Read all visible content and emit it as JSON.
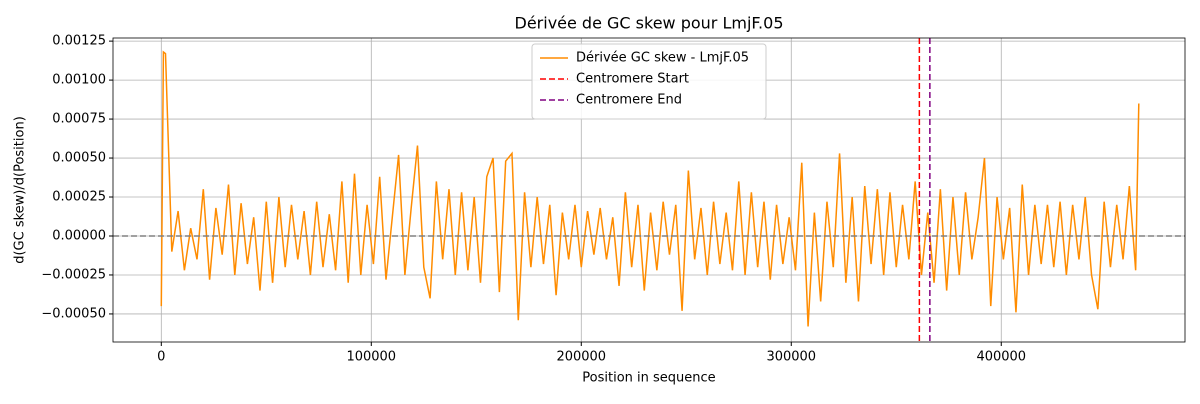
{
  "chart_data": {
    "type": "line",
    "title": "Dérivée de GC skew pour LmjF.05",
    "xlabel": "Position in sequence",
    "ylabel": "d(GC skew)/d(Position)",
    "xlim": [
      -23000,
      487500
    ],
    "ylim": [
      -0.00068,
      0.00127
    ],
    "xticks": [
      0,
      100000,
      200000,
      300000,
      400000
    ],
    "yticks": [
      {
        "value": -0.0005,
        "label": "−0.00050"
      },
      {
        "value": -0.00025,
        "label": "−0.00025"
      },
      {
        "value": 0,
        "label": "0.00000"
      },
      {
        "value": 0.00025,
        "label": "0.00025"
      },
      {
        "value": 0.0005,
        "label": "0.00050"
      },
      {
        "value": 0.00075,
        "label": "0.00075"
      },
      {
        "value": 0.001,
        "label": "0.00100"
      },
      {
        "value": 0.00125,
        "label": "0.00125"
      }
    ],
    "grid": true,
    "legend": "upper center",
    "x": [
      0,
      1000,
      2000,
      5000,
      8000,
      11000,
      14000,
      17000,
      20000,
      23000,
      26000,
      29000,
      32000,
      35000,
      38000,
      41000,
      44000,
      47000,
      50000,
      53000,
      56000,
      59000,
      62000,
      65000,
      68000,
      71000,
      74000,
      77000,
      80000,
      83000,
      86000,
      89000,
      92000,
      95000,
      98000,
      101000,
      104000,
      107000,
      110000,
      113000,
      116000,
      119000,
      122000,
      125000,
      128000,
      131000,
      134000,
      137000,
      140000,
      143000,
      146000,
      149000,
      152000,
      155000,
      158000,
      161000,
      164000,
      167000,
      170000,
      173000,
      176000,
      179000,
      182000,
      185000,
      188000,
      191000,
      194000,
      197000,
      200000,
      203000,
      206000,
      209000,
      212000,
      215000,
      218000,
      221000,
      224000,
      227000,
      230000,
      233000,
      236000,
      239000,
      242000,
      245000,
      248000,
      251000,
      254000,
      257000,
      260000,
      263000,
      266000,
      269000,
      272000,
      275000,
      278000,
      281000,
      284000,
      287000,
      290000,
      293000,
      296000,
      299000,
      302000,
      305000,
      308000,
      311000,
      314000,
      317000,
      320000,
      323000,
      326000,
      329000,
      332000,
      335000,
      338000,
      341000,
      344000,
      347000,
      350000,
      353000,
      356000,
      359000,
      362000,
      365000,
      368000,
      371000,
      374000,
      377000,
      380000,
      383000,
      386000,
      389000,
      392000,
      395000,
      398000,
      401000,
      404000,
      407000,
      410000,
      413000,
      416000,
      419000,
      422000,
      425000,
      428000,
      431000,
      434000,
      437000,
      440000,
      443000,
      446000,
      449000,
      452000,
      455000,
      458000,
      461000,
      464000,
      465500
    ],
    "series": [
      {
        "name": "Dérivée GC skew - LmjF.05",
        "color": "#ff8c00",
        "values": [
          -0.00045,
          0.00118,
          0.00117,
          -0.0001,
          0.00016,
          -0.00022,
          5e-05,
          -0.00015,
          0.0003,
          -0.00028,
          0.00018,
          -0.00012,
          0.00033,
          -0.00025,
          0.00021,
          -0.00018,
          0.00012,
          -0.00035,
          0.00022,
          -0.0003,
          0.00025,
          -0.0002,
          0.0002,
          -0.00015,
          0.00016,
          -0.00025,
          0.00022,
          -0.0002,
          0.00014,
          -0.00022,
          0.00035,
          -0.0003,
          0.0004,
          -0.00025,
          0.0002,
          -0.00018,
          0.00038,
          -0.00028,
          0.00012,
          0.00052,
          -0.00025,
          0.00018,
          0.00058,
          -0.0002,
          -0.0004,
          0.00035,
          -0.00015,
          0.0003,
          -0.00025,
          0.00028,
          -0.00022,
          0.00025,
          -0.0003,
          0.00038,
          0.0005,
          -0.00036,
          0.00048,
          0.00053,
          -0.00054,
          0.00028,
          -0.0002,
          0.00025,
          -0.00018,
          0.0002,
          -0.00038,
          0.00015,
          -0.00015,
          0.0002,
          -0.0002,
          0.00016,
          -0.00012,
          0.00018,
          -0.00015,
          0.00012,
          -0.00032,
          0.00028,
          -0.0002,
          0.0002,
          -0.00035,
          0.00015,
          -0.00022,
          0.00022,
          -0.00012,
          0.0002,
          -0.00048,
          0.00042,
          -0.00015,
          0.00018,
          -0.00025,
          0.00022,
          -0.00018,
          0.00015,
          -0.00022,
          0.00035,
          -0.00025,
          0.00028,
          -0.0002,
          0.00022,
          -0.00028,
          0.0002,
          -0.00018,
          0.00012,
          -0.00022,
          0.00047,
          -0.00058,
          0.00015,
          -0.00042,
          0.00022,
          -0.0002,
          0.00053,
          -0.0003,
          0.00025,
          -0.00042,
          0.00032,
          -0.00018,
          0.0003,
          -0.00025,
          0.00028,
          -0.0002,
          0.0002,
          -0.00015,
          0.00035,
          -0.00025,
          0.00015,
          -0.0003,
          0.0003,
          -0.00035,
          0.00025,
          -0.00025,
          0.00028,
          -0.00015,
          0.00012,
          0.0005,
          -0.00045,
          0.00025,
          -0.00015,
          0.00018,
          -0.00049,
          0.00033,
          -0.00025,
          0.0002,
          -0.00018,
          0.0002,
          -0.0002,
          0.00022,
          -0.00025,
          0.0002,
          -0.00015,
          0.00025,
          -0.00025,
          -0.00047,
          0.00022,
          -0.0002,
          0.0002,
          -0.00015,
          0.00032,
          -0.00022,
          0.00085
        ]
      }
    ],
    "vlines": [
      {
        "x": 361000,
        "name": "Centromere Start",
        "color": "red"
      },
      {
        "x": 366000,
        "name": "Centromere End",
        "color": "purple"
      }
    ],
    "hline": {
      "y": 0,
      "color": "gray"
    }
  }
}
